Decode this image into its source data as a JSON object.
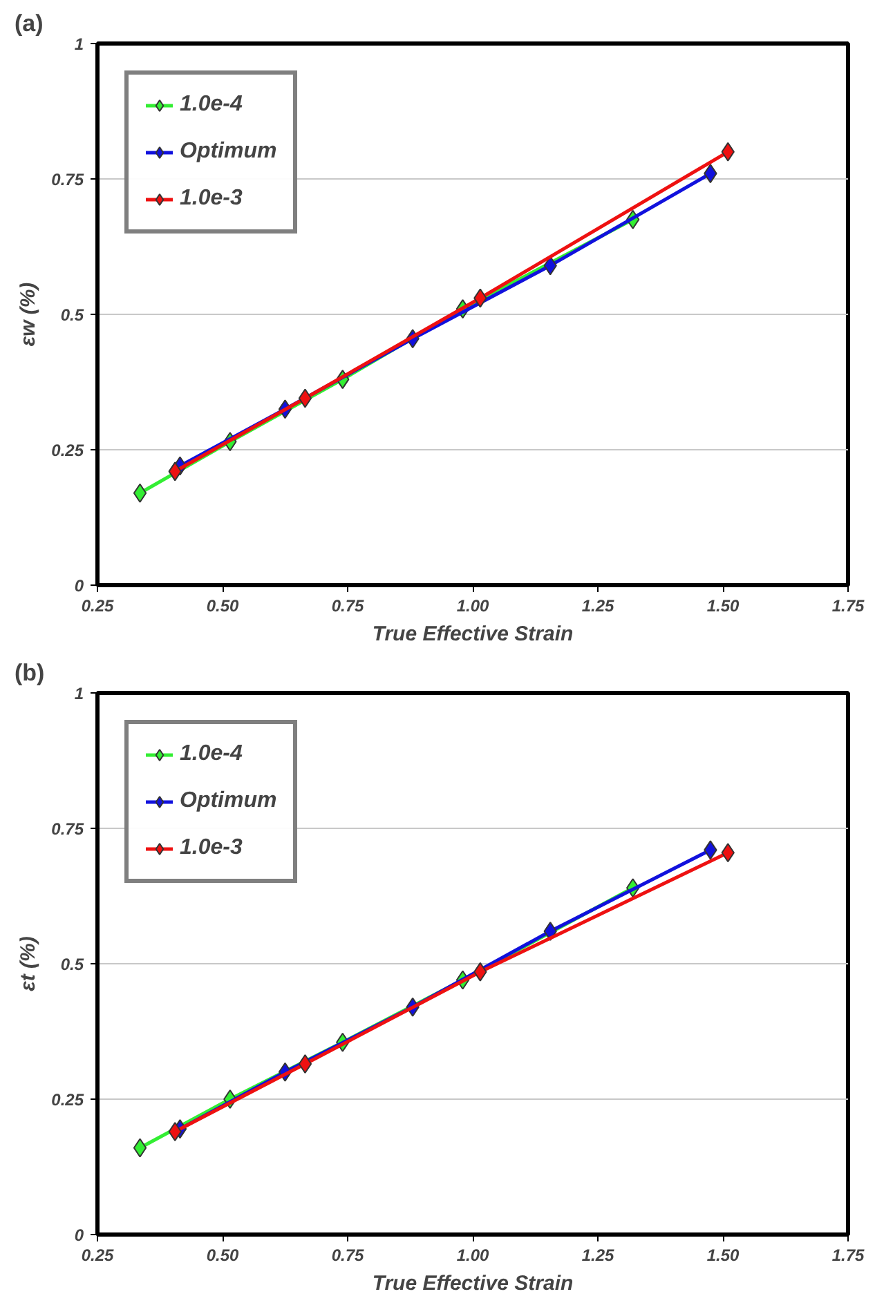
{
  "chart_data": [
    {
      "type": "line",
      "title": "(a)",
      "xlabel": "True Effective Strain",
      "ylabel": "εw (%)",
      "xlim": [
        0.25,
        1.75
      ],
      "ylim": [
        0,
        1
      ],
      "xticks": [
        {
          "value": 0.25,
          "label": "0.25"
        },
        {
          "value": 0.5,
          "label": "0.50"
        },
        {
          "value": 0.75,
          "label": "0.75"
        },
        {
          "value": 1.0,
          "label": "1.00"
        },
        {
          "value": 1.25,
          "label": "1.25"
        },
        {
          "value": 1.5,
          "label": "1.50"
        },
        {
          "value": 1.75,
          "label": "1.75"
        }
      ],
      "yticks": [
        0,
        0.25,
        0.5,
        0.75,
        1
      ],
      "grid": "y",
      "legend": "top left",
      "marker": "diamond",
      "line_style": "solid",
      "series": [
        {
          "name": "1.0e-4",
          "color": "#33ee33",
          "x": [
            0.335,
            0.515,
            0.74,
            0.98,
            1.32
          ],
          "values": [
            0.17,
            0.265,
            0.38,
            0.51,
            0.675
          ]
        },
        {
          "name": "Optimum",
          "color": "#1111dd",
          "x": [
            0.415,
            0.625,
            0.88,
            1.155,
            1.475
          ],
          "values": [
            0.22,
            0.325,
            0.455,
            0.59,
            0.76
          ]
        },
        {
          "name": "1.0e-3",
          "color": "#ee1111",
          "x": [
            0.405,
            0.665,
            1.015,
            1.51
          ],
          "values": [
            0.21,
            0.345,
            0.53,
            0.8
          ]
        }
      ]
    },
    {
      "type": "line",
      "title": "(b)",
      "xlabel": "True Effective Strain",
      "ylabel": "εt (%)",
      "xlim": [
        0.25,
        1.75
      ],
      "ylim": [
        0,
        1
      ],
      "xticks": [
        {
          "value": 0.25,
          "label": "0.25"
        },
        {
          "value": 0.5,
          "label": "0.50"
        },
        {
          "value": 0.75,
          "label": "0.75"
        },
        {
          "value": 1.0,
          "label": "1.00"
        },
        {
          "value": 1.25,
          "label": "1.25"
        },
        {
          "value": 1.5,
          "label": "1.50"
        },
        {
          "value": 1.75,
          "label": "1.75"
        }
      ],
      "yticks": [
        0,
        0.25,
        0.5,
        0.75,
        1
      ],
      "grid": "y",
      "legend": "top left",
      "marker": "diamond",
      "line_style": "solid",
      "series": [
        {
          "name": "1.0e-4",
          "color": "#33ee33",
          "x": [
            0.335,
            0.515,
            0.74,
            0.98,
            1.32
          ],
          "values": [
            0.16,
            0.25,
            0.355,
            0.47,
            0.64
          ]
        },
        {
          "name": "Optimum",
          "color": "#1111dd",
          "x": [
            0.415,
            0.625,
            0.88,
            1.155,
            1.475
          ],
          "values": [
            0.195,
            0.3,
            0.42,
            0.56,
            0.71
          ]
        },
        {
          "name": "1.0e-3",
          "color": "#ee1111",
          "x": [
            0.405,
            0.665,
            1.015,
            1.51
          ],
          "values": [
            0.19,
            0.315,
            0.485,
            0.705
          ]
        }
      ]
    }
  ]
}
